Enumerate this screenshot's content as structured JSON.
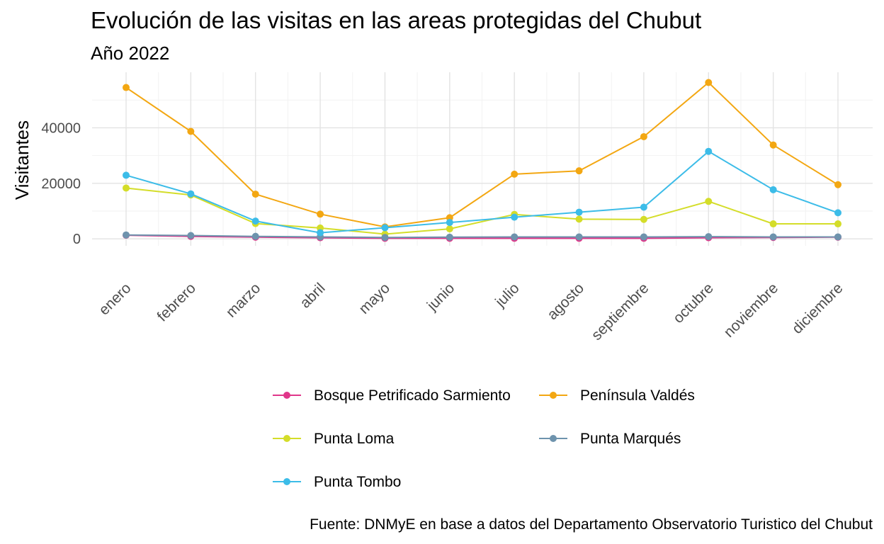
{
  "chart_data": {
    "type": "line",
    "title": "Evolución de las visitas en las areas protegidas del Chubut",
    "subtitle": "Año 2022",
    "xlabel": "",
    "ylabel": "Visitantes",
    "caption": "Fuente: DNMyE en base a datos del Departamento Observatorio Turistico del Chubut",
    "categories": [
      "enero",
      "febrero",
      "marzo",
      "abril",
      "mayo",
      "junio",
      "julio",
      "agosto",
      "septiembre",
      "octubre",
      "noviembre",
      "diciembre"
    ],
    "yticks": [
      0,
      20000,
      40000
    ],
    "ytick_labels": [
      "0",
      "20000",
      "40000"
    ],
    "ylim": [
      -2500,
      60000
    ],
    "grid": true,
    "legend_position": "bottom",
    "series": [
      {
        "name": "Bosque Petrificado Sarmiento",
        "color": "#e0368a",
        "values": [
          1300,
          900,
          600,
          400,
          200,
          200,
          200,
          200,
          200,
          400,
          500,
          600
        ]
      },
      {
        "name": "Península Valdés",
        "color": "#f3a712",
        "values": [
          54500,
          38700,
          16100,
          8900,
          4300,
          7600,
          23300,
          24500,
          36800,
          56300,
          33800,
          19500
        ]
      },
      {
        "name": "Punta Loma",
        "color": "#d4dd29",
        "values": [
          18300,
          15800,
          5500,
          3900,
          1700,
          3600,
          8800,
          7100,
          7000,
          13500,
          5400,
          5400
        ]
      },
      {
        "name": "Punta Marqués",
        "color": "#6e93ad",
        "values": [
          1400,
          1200,
          900,
          700,
          500,
          600,
          700,
          700,
          700,
          800,
          700,
          700
        ]
      },
      {
        "name": "Punta Tombo",
        "color": "#3cbce8",
        "values": [
          22900,
          16200,
          6400,
          2200,
          4000,
          5900,
          7800,
          9600,
          11400,
          31500,
          17700,
          9400
        ]
      }
    ]
  }
}
